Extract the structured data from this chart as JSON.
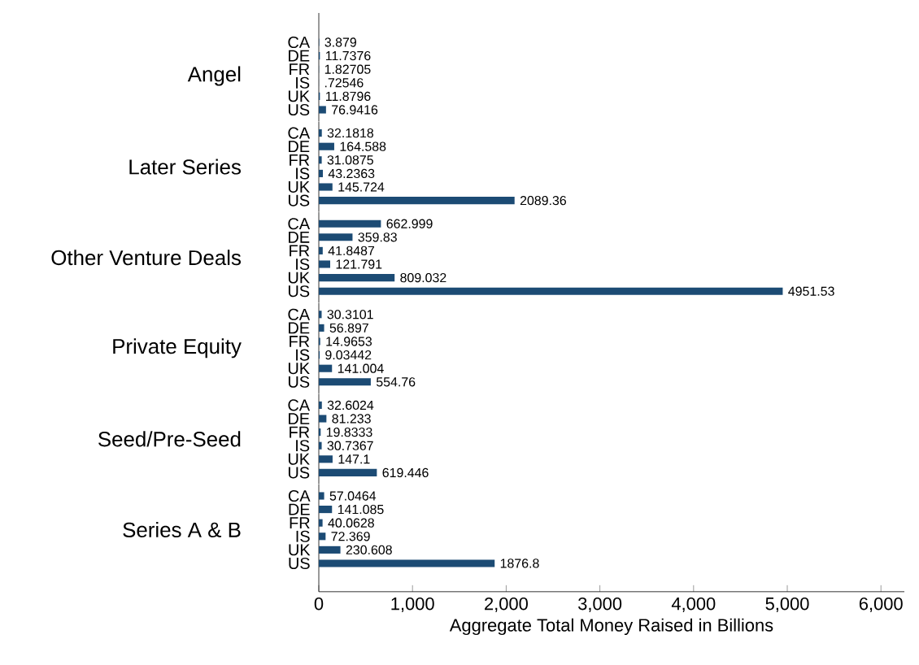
{
  "chart_data": [
    {
      "type": "bar",
      "orientation": "horizontal",
      "ylabel": "Angel",
      "categories": [
        "CA",
        "DE",
        "FR",
        "IS",
        "UK",
        "US"
      ],
      "values": [
        3.879,
        11.7376,
        1.82705,
        0.72546,
        11.8796,
        76.9416
      ],
      "value_labels": [
        "3.879",
        "11.7376",
        "1.82705",
        ".72546",
        "11.8796",
        "76.9416"
      ],
      "color": "#1c4b74",
      "tick_labels": "y"
    },
    {
      "type": "bar",
      "orientation": "horizontal",
      "ylabel": "Later Series",
      "categories": [
        "CA",
        "DE",
        "FR",
        "IS",
        "UK",
        "US"
      ],
      "values": [
        32.1818,
        164.588,
        31.0875,
        43.2363,
        145.724,
        2089.36
      ],
      "value_labels": [
        "32.1818",
        "164.588",
        "31.0875",
        "43.2363",
        "145.724",
        "2089.36"
      ],
      "color": "#1c4b74",
      "tick_labels": "y"
    },
    {
      "type": "bar",
      "orientation": "horizontal",
      "ylabel": "Other Venture Deals",
      "categories": [
        "CA",
        "DE",
        "FR",
        "IS",
        "UK",
        "US"
      ],
      "values": [
        662.999,
        359.83,
        41.8487,
        121.791,
        809.032,
        4951.53
      ],
      "value_labels": [
        "662.999",
        "359.83",
        "41.8487",
        "121.791",
        "809.032",
        "4951.53"
      ],
      "color": "#1c4b74",
      "tick_labels": "y"
    },
    {
      "type": "bar",
      "orientation": "horizontal",
      "ylabel": "Private Equity",
      "categories": [
        "CA",
        "DE",
        "FR",
        "IS",
        "UK",
        "US"
      ],
      "values": [
        30.3101,
        56.897,
        14.9653,
        9.03442,
        141.004,
        554.76
      ],
      "value_labels": [
        "30.3101",
        "56.897",
        "14.9653",
        "9.03442",
        "141.004",
        "554.76"
      ],
      "color": "#1c4b74",
      "tick_labels": "y"
    },
    {
      "type": "bar",
      "orientation": "horizontal",
      "ylabel": "Seed/Pre-Seed",
      "categories": [
        "CA",
        "DE",
        "FR",
        "IS",
        "UK",
        "US"
      ],
      "values": [
        32.6024,
        81.233,
        19.8333,
        30.7367,
        147.1,
        619.446
      ],
      "value_labels": [
        "32.6024",
        "81.233",
        "19.8333",
        "30.7367",
        "147.1",
        "619.446"
      ],
      "color": "#1c4b74",
      "tick_labels": "y"
    },
    {
      "type": "bar",
      "orientation": "horizontal",
      "ylabel": "Series A & B",
      "xlabel": "Aggregate Total Money Raised in Billions",
      "categories": [
        "CA",
        "DE",
        "FR",
        "IS",
        "UK",
        "US"
      ],
      "values": [
        57.0464,
        141.085,
        40.0628,
        72.369,
        230.608,
        1876.8
      ],
      "value_labels": [
        "57.0464",
        "141.085",
        "40.0628",
        "72.369",
        "230.608",
        "1876.8"
      ],
      "color": "#1c4b74",
      "xlim": [
        0,
        6250
      ],
      "xticks": [
        0,
        {
          "value": 1000,
          "label": "1,000"
        },
        {
          "value": 2000,
          "label": "2,000"
        },
        {
          "value": 3000,
          "label": "3,000"
        },
        {
          "value": 4000,
          "label": "4,000"
        },
        {
          "value": 5000,
          "label": "5,000"
        },
        {
          "value": 6000,
          "label": "6,000"
        }
      ]
    }
  ]
}
